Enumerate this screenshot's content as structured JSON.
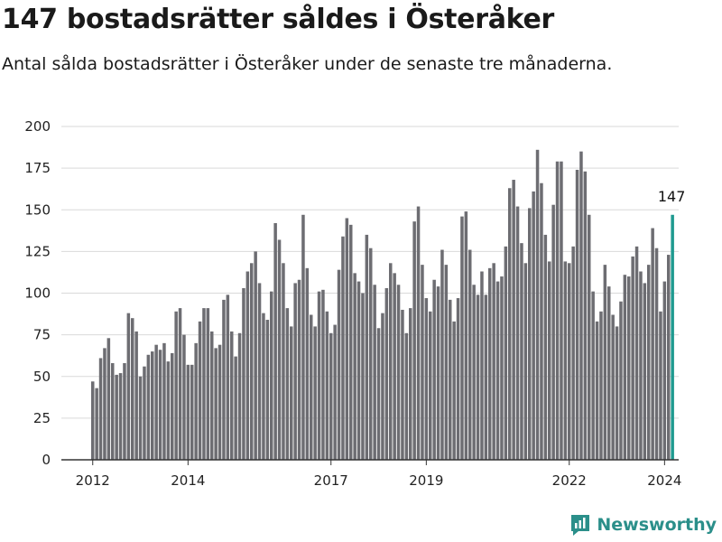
{
  "header": {
    "title": "147 bostadsrätter såldes i Österåker",
    "subtitle": "Antal sålda bostadsrätter i Österåker under de senaste tre månaderna."
  },
  "brand": {
    "name": "Newsworthy",
    "icon": "newsworthy-logo-icon",
    "color": "#2b8f8a"
  },
  "colors": {
    "bar": "#6d6d72",
    "highlight": "#1f9a90",
    "grid": "#d9d9d9",
    "axis": "#333333"
  },
  "chart_data": {
    "type": "bar",
    "title": "147 bostadsrätter såldes i Österåker",
    "subtitle": "Antal sålda bostadsrätter i Österåker under de senaste tre månaderna.",
    "xlabel": "",
    "ylabel": "",
    "ylim": [
      0,
      200
    ],
    "yticks": [
      0,
      25,
      50,
      75,
      100,
      125,
      150,
      175,
      200
    ],
    "grid": true,
    "start_month": "2012-01",
    "xticks": [
      {
        "label": "2012",
        "month": "2012-01"
      },
      {
        "label": "2014",
        "month": "2014-01"
      },
      {
        "label": "2017",
        "month": "2017-01"
      },
      {
        "label": "2019",
        "month": "2019-01"
      },
      {
        "label": "2022",
        "month": "2022-01"
      },
      {
        "label": "2024",
        "month": "2024-01"
      }
    ],
    "values": [
      47,
      43,
      61,
      67,
      73,
      58,
      51,
      52,
      58,
      88,
      85,
      77,
      50,
      56,
      63,
      65,
      69,
      66,
      70,
      59,
      64,
      89,
      91,
      75,
      57,
      57,
      70,
      83,
      91,
      91,
      77,
      67,
      69,
      96,
      99,
      77,
      62,
      76,
      103,
      113,
      118,
      125,
      106,
      88,
      84,
      101,
      142,
      132,
      118,
      91,
      80,
      106,
      108,
      147,
      115,
      87,
      80,
      101,
      102,
      89,
      76,
      81,
      114,
      134,
      145,
      141,
      112,
      107,
      100,
      135,
      127,
      105,
      79,
      88,
      103,
      118,
      112,
      105,
      90,
      76,
      91,
      143,
      152,
      117,
      97,
      89,
      108,
      104,
      126,
      117,
      96,
      83,
      97,
      146,
      149,
      126,
      105,
      99,
      113,
      99,
      115,
      118,
      107,
      110,
      128,
      163,
      168,
      152,
      130,
      118,
      151,
      161,
      186,
      166,
      135,
      119,
      153,
      179,
      179,
      119,
      118,
      128,
      174,
      185,
      173,
      147,
      101,
      83,
      89,
      117,
      104,
      87,
      80,
      95,
      111,
      110,
      122,
      128,
      113,
      106,
      117,
      139,
      127,
      89,
      107,
      123,
      147
    ],
    "highlight": {
      "label": "147",
      "index": 146
    }
  }
}
